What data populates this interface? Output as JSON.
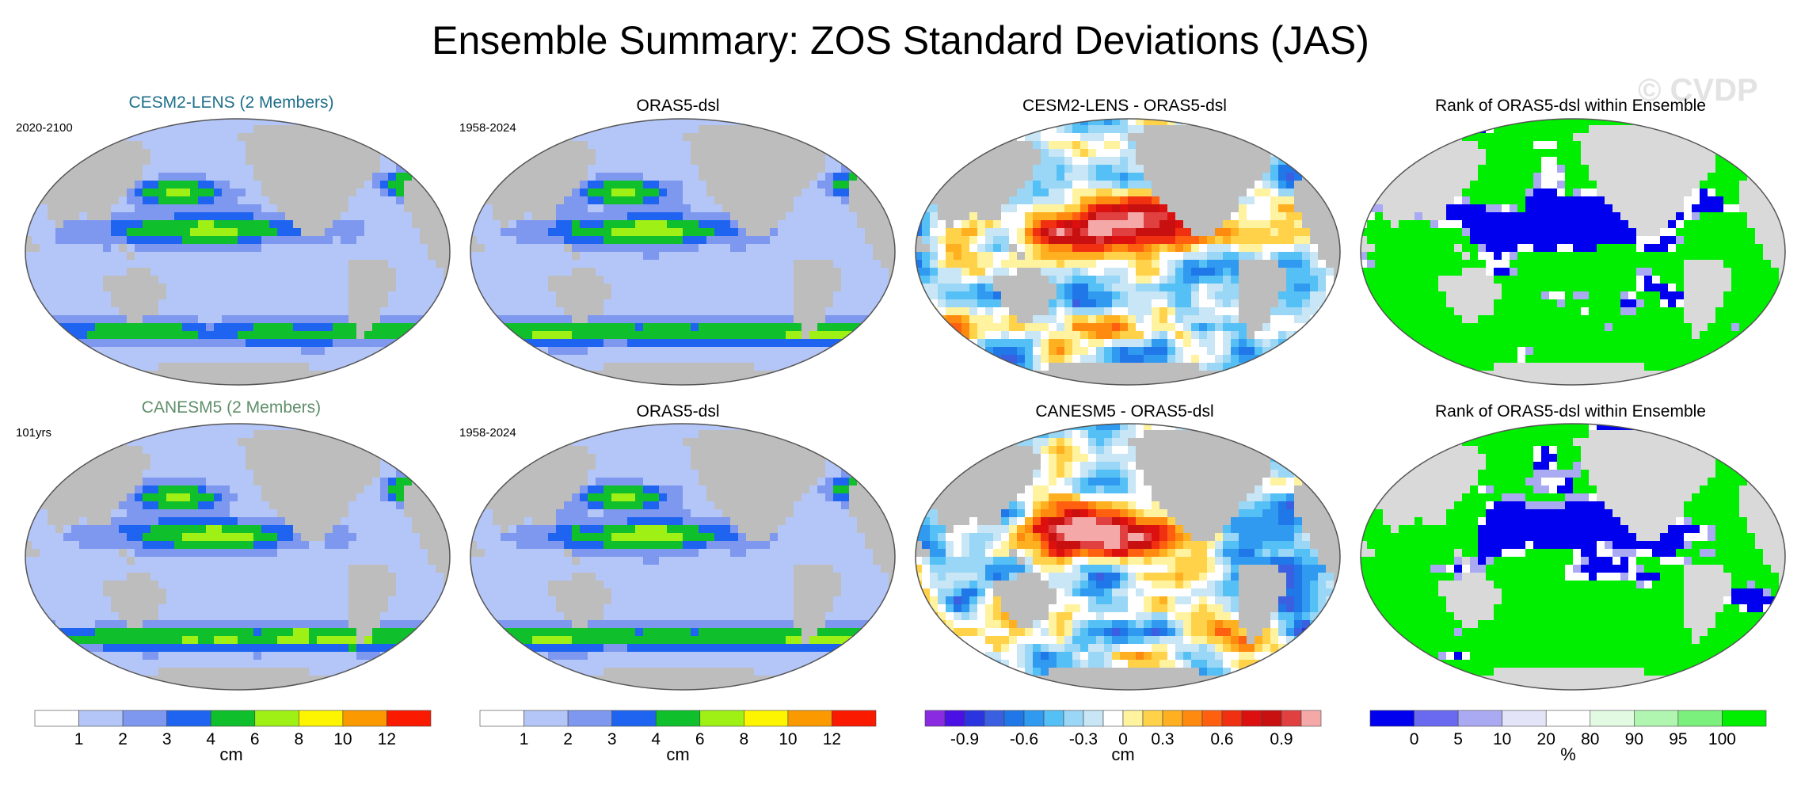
{
  "title": "Ensemble Summary: ZOS Standard Deviations (JAS)",
  "watermark": "© CVDP",
  "colors": {
    "land": "#bdbdbd",
    "land_light": "#d9d9d9",
    "ocean_edge": "#555555"
  },
  "chart_data": [
    {
      "type": "heatmap",
      "title": "CESM2-LENS (2 Members)",
      "title_color": "#1f6f8b",
      "period": "2020-2100",
      "scale": "std",
      "field": "cesm_std"
    },
    {
      "type": "heatmap",
      "title": "ORAS5-dsl",
      "title_color": "#000000",
      "period": "1958-2024",
      "scale": "std",
      "field": "obs_std"
    },
    {
      "type": "heatmap",
      "title": "CESM2-LENS - ORAS5-dsl",
      "title_color": "#000000",
      "period": "",
      "scale": "diff",
      "field": "cesm_diff"
    },
    {
      "type": "heatmap",
      "title": "Rank of ORAS5-dsl within Ensemble",
      "title_color": "#000000",
      "period": "",
      "scale": "rank",
      "field": "cesm_rank"
    },
    {
      "type": "heatmap",
      "title": "CANESM5 (2 Members)",
      "title_color": "#5f8f6b",
      "period": "101yrs",
      "scale": "std",
      "field": "can_std"
    },
    {
      "type": "heatmap",
      "title": "ORAS5-dsl",
      "title_color": "#000000",
      "period": "1958-2024",
      "scale": "std",
      "field": "obs_std"
    },
    {
      "type": "heatmap",
      "title": "CANESM5 - ORAS5-dsl",
      "title_color": "#000000",
      "period": "",
      "scale": "diff",
      "field": "can_diff"
    },
    {
      "type": "heatmap",
      "title": "Rank of ORAS5-dsl within Ensemble",
      "title_color": "#000000",
      "period": "",
      "scale": "rank",
      "field": "can_rank"
    }
  ],
  "colorbars": [
    {
      "name": "std",
      "unit": "cm",
      "colors": [
        "#ffffff",
        "#b4c6f7",
        "#7d98ee",
        "#1f64f0",
        "#0fbf2c",
        "#9ef015",
        "#fdf400",
        "#fa9a00",
        "#fa1a00"
      ],
      "ticks": [
        "1",
        "2",
        "3",
        "4",
        "6",
        "8",
        "10",
        "12"
      ]
    },
    {
      "name": "std2",
      "unit": "cm",
      "colors": [
        "#ffffff",
        "#b4c6f7",
        "#7d98ee",
        "#1f64f0",
        "#0fbf2c",
        "#9ef015",
        "#fdf400",
        "#fa9a00",
        "#fa1a00"
      ],
      "ticks": [
        "1",
        "2",
        "3",
        "4",
        "6",
        "8",
        "10",
        "12"
      ]
    },
    {
      "name": "diff",
      "unit": "cm",
      "colors": [
        "#8a2be2",
        "#4b10e6",
        "#2a35e0",
        "#3a5fe0",
        "#1f77e8",
        "#2f9af0",
        "#55c0f5",
        "#9ad6f5",
        "#c8e6f5",
        "#ffffff",
        "#fff3a0",
        "#ffd24a",
        "#ffb020",
        "#ff8a10",
        "#ff6010",
        "#f03010",
        "#dd1010",
        "#c81010",
        "#e04040",
        "#f4a8a8"
      ],
      "ticks": [
        "-0.9",
        "-0.6",
        "-0.3",
        "0",
        "0.3",
        "0.6",
        "0.9"
      ]
    },
    {
      "name": "rank",
      "unit": "%",
      "colors": [
        "#0000ee",
        "#6a6af0",
        "#aaaaf2",
        "#e4e4f8",
        "#ffffff",
        "#e2fae2",
        "#b0f6b0",
        "#7cf07c",
        "#00ee00"
      ],
      "ticks": [
        "0",
        "5",
        "10",
        "20",
        "80",
        "90",
        "95",
        "100"
      ]
    }
  ],
  "palettes": {
    "std": [
      "#ffffff",
      "#b4c6f7",
      "#7d98ee",
      "#1f64f0",
      "#0fbf2c",
      "#9ef015",
      "#fdf400",
      "#fa9a00",
      "#fa1a00"
    ],
    "diff": [
      "#8a2be2",
      "#4b10e6",
      "#2a35e0",
      "#3a5fe0",
      "#1f77e8",
      "#2f9af0",
      "#55c0f5",
      "#9ad6f5",
      "#c8e6f5",
      "#ffffff",
      "#fff3a0",
      "#ffd24a",
      "#ffb020",
      "#ff8a10",
      "#ff6010",
      "#f03010",
      "#dd1010",
      "#c81010",
      "#e04040",
      "#f4a8a8"
    ],
    "rank": [
      "#0000ee",
      "#6a6af0",
      "#aaaaf2",
      "#e4e4f8",
      "#ffffff",
      "#e2fae2",
      "#b0f6b0",
      "#7cf07c",
      "#00ee00"
    ]
  }
}
